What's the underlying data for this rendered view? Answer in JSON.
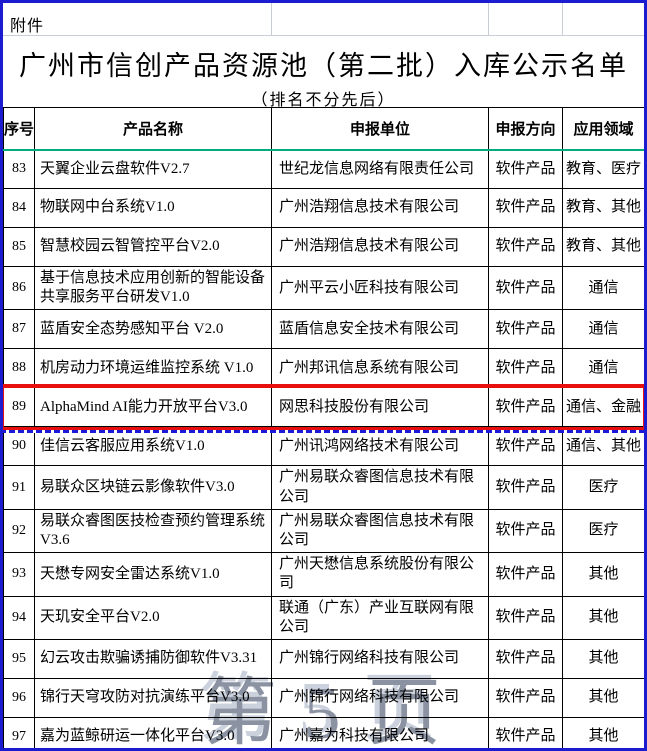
{
  "page": {
    "attachment_label": "附件",
    "title": "广州市信创产品资源池（第二批）入库公示名单",
    "subtitle": "（排名不分先后）",
    "watermark": "第 5 页"
  },
  "colors": {
    "outer_border": "#1b1bd0",
    "highlight_box": "#e80f0f",
    "marquee_dash": "#1a1ad8",
    "freeze_line": "#00ab7e",
    "watermark_gray": "#8b93a3"
  },
  "table": {
    "columns": [
      "序号",
      "产品名称",
      "申报单位",
      "申报方向",
      "应用领域"
    ],
    "rows": [
      {
        "no": "83",
        "product": "天翼企业云盘软件V2.7",
        "company": "世纪龙信息网络有限责任公司",
        "direction": "软件产品",
        "field": "教育、医疗",
        "highlight": false
      },
      {
        "no": "84",
        "product": "物联网中台系统V1.0",
        "company": "广州浩翔信息技术有限公司",
        "direction": "软件产品",
        "field": "教育、其他",
        "highlight": false
      },
      {
        "no": "85",
        "product": "智慧校园云智管控平台V2.0",
        "company": "广州浩翔信息技术有限公司",
        "direction": "软件产品",
        "field": "教育、其他",
        "highlight": false
      },
      {
        "no": "86",
        "product": "基于信息技术应用创新的智能设备共享服务平台研发V1.0",
        "company": "广州平云小匠科技有限公司",
        "direction": "软件产品",
        "field": "通信",
        "highlight": false
      },
      {
        "no": "87",
        "product": "蓝盾安全态势感知平台 V2.0",
        "company": "蓝盾信息安全技术有限公司",
        "direction": "软件产品",
        "field": "通信",
        "highlight": false
      },
      {
        "no": "88",
        "product": "机房动力环境运维监控系统 V1.0",
        "company": "广州邦讯信息系统有限公司",
        "direction": "软件产品",
        "field": "通信",
        "highlight": false
      },
      {
        "no": "89",
        "product": "AlphaMind AI能力开放平台V3.0",
        "company": "网思科技股份有限公司",
        "direction": "软件产品",
        "field": "通信、金融",
        "highlight": true
      },
      {
        "no": "90",
        "product": "佳信云客服应用系统V1.0",
        "company": "广州讯鸿网络技术有限公司",
        "direction": "软件产品",
        "field": "通信、其他",
        "highlight": false
      },
      {
        "no": "91",
        "product": "易联众区块链云影像软件V3.0",
        "company": "广州易联众睿图信息技术有限公司",
        "direction": "软件产品",
        "field": "医疗",
        "highlight": false
      },
      {
        "no": "92",
        "product": "易联众睿图医技检查预约管理系统V3.6",
        "company": "广州易联众睿图信息技术有限公司",
        "direction": "软件产品",
        "field": "医疗",
        "highlight": false
      },
      {
        "no": "93",
        "product": "天懋专网安全雷达系统V1.0",
        "company": "广州天懋信息系统股份有限公司",
        "direction": "软件产品",
        "field": "其他",
        "highlight": false
      },
      {
        "no": "94",
        "product": "天玑安全平台V2.0",
        "company": "联通（广东）产业互联网有限公司",
        "direction": "软件产品",
        "field": "其他",
        "highlight": false
      },
      {
        "no": "95",
        "product": "幻云攻击欺骗诱捕防御软件V3.31",
        "company": "广州锦行网络科技有限公司",
        "direction": "软件产品",
        "field": "其他",
        "highlight": false
      },
      {
        "no": "96",
        "product": "锦行天穹攻防对抗演练平台V3.0",
        "company": "广州锦行网络科技有限公司",
        "direction": "软件产品",
        "field": "其他",
        "highlight": false
      },
      {
        "no": "97",
        "product": "嘉为蓝鲸研运一体化平台V3.0",
        "company": "广州嘉为科技有限公司",
        "direction": "软件产品",
        "field": "其他",
        "highlight": false
      }
    ]
  }
}
